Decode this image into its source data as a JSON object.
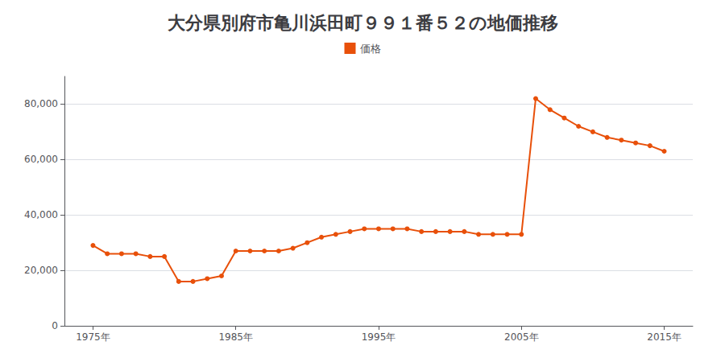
{
  "chart_data": {
    "type": "line",
    "title": "大分県別府市亀川浜田町９９１番５２の地価推移",
    "x": [
      1975,
      1976,
      1977,
      1978,
      1979,
      1980,
      1981,
      1982,
      1983,
      1984,
      1985,
      1986,
      1987,
      1988,
      1989,
      1990,
      1991,
      1992,
      1993,
      1994,
      1995,
      1996,
      1997,
      1998,
      1999,
      2000,
      2001,
      2002,
      2003,
      2004,
      2005,
      2006,
      2007,
      2008,
      2009,
      2010,
      2011,
      2012,
      2013,
      2014,
      2015
    ],
    "series": [
      {
        "name": "価格",
        "color": "#e8500a",
        "marker": "circle",
        "values": [
          29000,
          26000,
          26000,
          26000,
          25000,
          25000,
          16000,
          16000,
          17000,
          18000,
          27000,
          27000,
          27000,
          27000,
          28000,
          30000,
          32000,
          33000,
          34000,
          35000,
          35000,
          35000,
          35000,
          34000,
          34000,
          34000,
          34000,
          33000,
          33000,
          33000,
          33000,
          82000,
          78000,
          75000,
          72000,
          70000,
          68000,
          67000,
          66000,
          65000,
          63000
        ]
      }
    ],
    "xlim": [
      1973,
      2017
    ],
    "xticks": [
      {
        "value": 1975,
        "label": "1975年"
      },
      {
        "value": 1985,
        "label": "1985年"
      },
      {
        "value": 1995,
        "label": "1995年"
      },
      {
        "value": 2005,
        "label": "2005年"
      },
      {
        "value": 2015,
        "label": "2015年"
      }
    ],
    "ylim": [
      0,
      90000
    ],
    "yticks": [
      0,
      {
        "value": 20000,
        "label": "20,000"
      },
      {
        "value": 40000,
        "label": "40,000"
      },
      {
        "value": 60000,
        "label": "60,000"
      },
      {
        "value": 80000,
        "label": "80,000"
      }
    ],
    "grid": true,
    "legend": "top"
  }
}
